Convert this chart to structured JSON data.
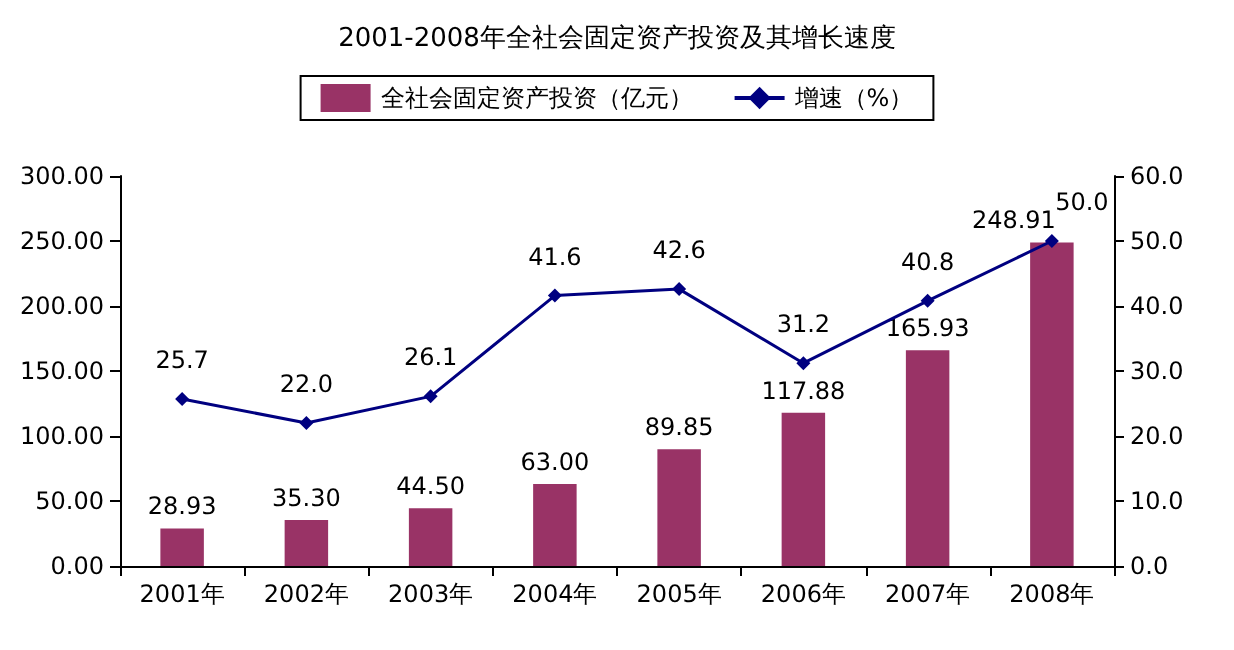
{
  "chart_data": {
    "type": "bar",
    "title": "2001-2008年全社会固定资产投资及其增长速度",
    "categories": [
      "2001年",
      "2002年",
      "2003年",
      "2004年",
      "2005年",
      "2006年",
      "2007年",
      "2008年"
    ],
    "series": [
      {
        "name": "全社会固定资产投资（亿元）",
        "color": "#993366",
        "values": [
          28.93,
          35.3,
          44.5,
          63.0,
          89.85,
          117.88,
          165.93,
          248.91
        ],
        "value_labels": [
          "28.93",
          "35.30",
          "44.50",
          "63.00",
          "89.85",
          "117.88",
          "165.93",
          "248.91"
        ]
      },
      {
        "name": "增速（%）",
        "type": "line",
        "axis": "y2",
        "color": "#000080",
        "marker": "diamond",
        "values": [
          25.7,
          22.0,
          26.1,
          41.6,
          42.6,
          31.2,
          40.8,
          50.0
        ],
        "value_labels": [
          "25.7",
          "22.0",
          "26.1",
          "41.6",
          "42.6",
          "31.2",
          "40.8",
          "50.0"
        ]
      }
    ],
    "ylim": [
      0,
      300
    ],
    "yticks": [
      {
        "value": 0,
        "label": "0.00"
      },
      {
        "value": 50,
        "label": "50.00"
      },
      {
        "value": 100,
        "label": "100.00"
      },
      {
        "value": 150,
        "label": "150.00"
      },
      {
        "value": 200,
        "label": "200.00"
      },
      {
        "value": 250,
        "label": "250.00"
      },
      {
        "value": 300,
        "label": "300.00"
      }
    ],
    "y2lim": [
      0,
      60
    ],
    "y2ticks": [
      {
        "value": 0,
        "label": "0.0"
      },
      {
        "value": 10,
        "label": "10.0"
      },
      {
        "value": 20,
        "label": "20.0"
      },
      {
        "value": 30,
        "label": "30.0"
      },
      {
        "value": 40,
        "label": "40.0"
      },
      {
        "value": 50,
        "label": "50.0"
      },
      {
        "value": 60,
        "label": "60.0"
      }
    ],
    "legend": "top",
    "grid": false
  }
}
